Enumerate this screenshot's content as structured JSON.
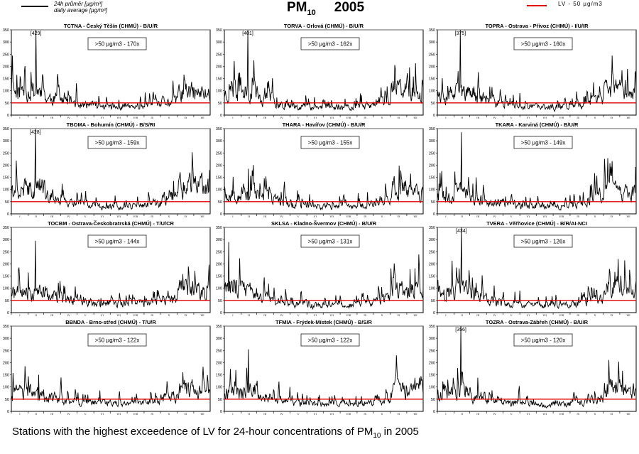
{
  "header": {
    "legend_line_label_1": "24h průměr [µg/m³]",
    "legend_line_label_2": "daily average [µg/m³]",
    "title_main": "PM",
    "title_sub": "10",
    "title_year": "2005",
    "legend_limit_label": "LV - 50 µg/m3"
  },
  "caption": {
    "text_before": "Stations with the highest exceedence of LV for 24-hour concentrations of PM",
    "sub": "10",
    "text_after": " in 2005"
  },
  "colors": {
    "series": "#000000",
    "limit_line": "#e10000",
    "frame": "#000000",
    "gridline": "#bbbbbb"
  },
  "chart_data": [
    {
      "type": "line",
      "title": "TCTNA - Český Těšín (CHMÚ) - B/U/R",
      "annotation": ">50 µg/m3 - 170x",
      "peak_label": "[429]",
      "peak_value": 429,
      "peak_day": 45,
      "limit": 50,
      "ylim": [
        0,
        350
      ],
      "yticks": [
        0,
        50,
        100,
        150,
        200,
        250,
        300,
        350
      ],
      "months": [
        "I",
        "II",
        "III",
        "IV",
        "V",
        "VI",
        "VII",
        "VIII",
        "IX",
        "X",
        "XI",
        "XII"
      ],
      "winter_level": [
        95,
        100,
        70,
        55,
        40,
        35,
        30,
        32,
        40,
        55,
        95,
        90
      ],
      "seed": 11
    },
    {
      "type": "line",
      "title": "TORVA - Orlová (CHMÚ) - B/U/R",
      "annotation": ">50 µg/m3 - 162x",
      "peak_label": "[401]",
      "peak_value": 401,
      "peak_day": 43,
      "limit": 50,
      "ylim": [
        0,
        350
      ],
      "yticks": [
        0,
        50,
        100,
        150,
        200,
        250,
        300,
        350
      ],
      "months": [
        "I",
        "II",
        "III",
        "IV",
        "V",
        "VI",
        "VII",
        "VIII",
        "IX",
        "X",
        "XI",
        "XII"
      ],
      "winter_level": [
        90,
        95,
        65,
        50,
        38,
        32,
        30,
        32,
        38,
        60,
        110,
        95
      ],
      "seed": 23
    },
    {
      "type": "line",
      "title": "TOPRA - Ostrava - Přívoz (CHMÚ) - I/U/IR",
      "annotation": ">50 µg/m3 - 160x",
      "peak_label": "[375]",
      "peak_value": 375,
      "peak_day": 42,
      "limit": 50,
      "ylim": [
        0,
        350
      ],
      "yticks": [
        0,
        50,
        100,
        150,
        200,
        250,
        300,
        350
      ],
      "months": [
        "I",
        "II",
        "III",
        "IV",
        "V",
        "VI",
        "VII",
        "VIII",
        "IX",
        "X",
        "XI",
        "XII"
      ],
      "winter_level": [
        85,
        90,
        70,
        55,
        40,
        35,
        32,
        34,
        40,
        60,
        105,
        90
      ],
      "seed": 37
    },
    {
      "type": "line",
      "title": "TBOMA - Bohumín (CHMÚ) - B/S/RI",
      "annotation": ">50 µg/m3 - 159x",
      "peak_label": "[428]",
      "peak_value": 428,
      "peak_day": 44,
      "limit": 50,
      "ylim": [
        0,
        350
      ],
      "yticks": [
        0,
        50,
        100,
        150,
        200,
        250,
        300,
        350
      ],
      "months": [
        "I",
        "II",
        "III",
        "IV",
        "V",
        "VI",
        "VII",
        "VIII",
        "IX",
        "X",
        "XI",
        "XII"
      ],
      "winter_level": [
        95,
        110,
        70,
        50,
        38,
        32,
        30,
        32,
        40,
        70,
        120,
        110
      ],
      "seed": 41
    },
    {
      "type": "line",
      "title": "THARA - Havířov (CHMÚ) - B/U/R",
      "annotation": ">50 µg/m3 - 155x",
      "peak_label": "",
      "peak_value": 185,
      "peak_day": 44,
      "limit": 50,
      "ylim": [
        0,
        350
      ],
      "yticks": [
        0,
        50,
        100,
        150,
        200,
        250,
        300,
        350
      ],
      "months": [
        "I",
        "II",
        "III",
        "IV",
        "V",
        "VI",
        "VII",
        "VIII",
        "IX",
        "X",
        "XI",
        "XII"
      ],
      "winter_level": [
        85,
        95,
        65,
        50,
        38,
        32,
        30,
        32,
        38,
        60,
        105,
        90
      ],
      "seed": 53
    },
    {
      "type": "line",
      "title": "TKARA - Karviná (CHMÚ) - B/U/R",
      "annotation": ">50 µg/m3 - 149x",
      "peak_label": "",
      "peak_value": 335,
      "peak_day": 44,
      "limit": 50,
      "ylim": [
        0,
        350
      ],
      "yticks": [
        0,
        50,
        100,
        150,
        200,
        250,
        300,
        350
      ],
      "months": [
        "I",
        "II",
        "III",
        "IV",
        "V",
        "VI",
        "VII",
        "VIII",
        "IX",
        "X",
        "XI",
        "XII"
      ],
      "winter_level": [
        80,
        90,
        60,
        48,
        36,
        32,
        30,
        32,
        38,
        58,
        95,
        85
      ],
      "seed": 67
    },
    {
      "type": "line",
      "title": "TOCBM - Ostrava-Českobratrská (CHMÚ) - T/U/CR",
      "annotation": ">50 µg/m3 - 144x",
      "peak_label": "",
      "peak_value": 295,
      "peak_day": 44,
      "limit": 50,
      "ylim": [
        0,
        350
      ],
      "yticks": [
        0,
        50,
        100,
        150,
        200,
        250,
        300,
        350
      ],
      "months": [
        "I",
        "II",
        "III",
        "IV",
        "V",
        "VI",
        "VII",
        "VIII",
        "IX",
        "X",
        "XI",
        "XII"
      ],
      "winter_level": [
        80,
        85,
        65,
        55,
        45,
        40,
        38,
        40,
        45,
        65,
        100,
        85
      ],
      "seed": 71
    },
    {
      "type": "line",
      "title": "SKLSA - Kladno-Švermov (CHMÚ) - B/U/R",
      "annotation": ">50 µg/m3 - 131x",
      "peak_label": "",
      "peak_value": 290,
      "peak_day": 8,
      "limit": 50,
      "ylim": [
        0,
        350
      ],
      "yticks": [
        0,
        50,
        100,
        150,
        200,
        250,
        300,
        350
      ],
      "months": [
        "I",
        "II",
        "III",
        "IV",
        "V",
        "VI",
        "VII",
        "VIII",
        "IX",
        "X",
        "XI",
        "XII"
      ],
      "winter_level": [
        110,
        95,
        60,
        45,
        35,
        30,
        28,
        30,
        38,
        60,
        100,
        95
      ],
      "seed": 83
    },
    {
      "type": "line",
      "title": "TVERA - Věřňovice (CHMÚ) - B/R/AI-NCI",
      "annotation": ">50 µg/m3 - 126x",
      "peak_label": "[434]",
      "peak_value": 434,
      "peak_day": 44,
      "limit": 50,
      "ylim": [
        0,
        350
      ],
      "yticks": [
        0,
        50,
        100,
        150,
        200,
        250,
        300,
        350
      ],
      "months": [
        "I",
        "II",
        "III",
        "IV",
        "V",
        "VI",
        "VII",
        "VIII",
        "IX",
        "X",
        "XI",
        "XII"
      ],
      "winter_level": [
        85,
        95,
        60,
        45,
        35,
        30,
        28,
        30,
        38,
        60,
        110,
        90
      ],
      "seed": 97
    },
    {
      "type": "line",
      "title": "BBNDA - Brno-střed (CHMÚ) - T/U/R",
      "annotation": ">50 µg/m3 - 122x",
      "peak_label": "",
      "peak_value": 150,
      "peak_day": 50,
      "limit": 50,
      "ylim": [
        0,
        350
      ],
      "yticks": [
        0,
        50,
        100,
        150,
        200,
        250,
        300,
        350
      ],
      "months": [
        "I",
        "II",
        "III",
        "IV",
        "V",
        "VI",
        "VII",
        "VIII",
        "IX",
        "X",
        "XI",
        "XII"
      ],
      "winter_level": [
        75,
        85,
        55,
        45,
        38,
        35,
        32,
        35,
        42,
        60,
        90,
        80
      ],
      "seed": 103
    },
    {
      "type": "line",
      "title": "TFMIA - Frýdek-Místek (CHMÚ) - B/S/R",
      "annotation": ">50 µg/m3 - 122x",
      "peak_label": "",
      "peak_value": 255,
      "peak_day": 44,
      "limit": 50,
      "ylim": [
        0,
        350
      ],
      "yticks": [
        0,
        50,
        100,
        150,
        200,
        250,
        300,
        350
      ],
      "months": [
        "I",
        "II",
        "III",
        "IV",
        "V",
        "VI",
        "VII",
        "VIII",
        "IX",
        "X",
        "XI",
        "XII"
      ],
      "winter_level": [
        80,
        90,
        55,
        42,
        34,
        30,
        28,
        30,
        36,
        55,
        100,
        85
      ],
      "seed": 109
    },
    {
      "type": "line",
      "title": "TOZRA - Ostrava-Zábřeh (CHMÚ) - B/U/R",
      "annotation": ">50 µg/m3 - 120x",
      "peak_label": "[356]",
      "peak_value": 356,
      "peak_day": 43,
      "limit": 50,
      "ylim": [
        0,
        350
      ],
      "yticks": [
        0,
        50,
        100,
        150,
        200,
        250,
        300,
        350
      ],
      "months": [
        "I",
        "II",
        "III",
        "IV",
        "V",
        "VI",
        "VII",
        "VIII",
        "IX",
        "X",
        "XI",
        "XII"
      ],
      "winter_level": [
        80,
        90,
        58,
        44,
        34,
        30,
        28,
        30,
        36,
        55,
        100,
        85
      ],
      "seed": 127
    }
  ]
}
